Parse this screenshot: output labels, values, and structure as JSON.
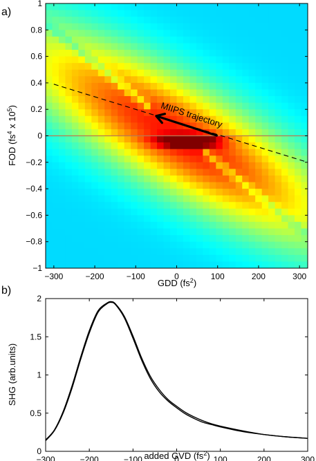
{
  "panel_labels": {
    "a": "a)",
    "b": "b)"
  },
  "chart_data": [
    {
      "type": "heatmap",
      "panel": "a)",
      "xlabel": "GDD (fs",
      "xlabel_sup": "2",
      "xlabel_end": ")",
      "ylabel": "FOD (fs",
      "ylabel_sup1": "4",
      "ylabel_mid": " x 10",
      "ylabel_sup2": "5",
      "ylabel_end": ")",
      "xlim": [
        -320,
        320
      ],
      "ylim": [
        -1,
        1
      ],
      "xticks": [
        -300,
        -200,
        -100,
        0,
        100,
        200,
        300
      ],
      "yticks": [
        -1,
        -0.8,
        -0.6,
        -0.4,
        -0.2,
        0,
        0.2,
        0.4,
        0.6,
        0.8,
        1
      ],
      "xtick_labels": [
        "−300",
        "−200",
        "−100",
        "0",
        "100",
        "200",
        "300"
      ],
      "ytick_labels": [
        "−1",
        "−0.8",
        "−0.6",
        "−0.4",
        "−0.2",
        "0",
        "0.2",
        "0.4",
        "0.6",
        "0.8",
        "1"
      ],
      "colormap": "jet",
      "peak": {
        "x": 30,
        "y": -0.04
      },
      "annotation": "MIIPS trajectory",
      "arrow": {
        "from": [
          100,
          0
        ],
        "to": [
          -50,
          0.15
        ]
      },
      "dashed_line": {
        "from": [
          -300,
          0.39
        ],
        "to": [
          320,
          -0.2
        ]
      },
      "horizontal_line": {
        "y": 0,
        "color": "#b87a52"
      }
    },
    {
      "type": "line",
      "panel": "b)",
      "xlabel": "added GVD (fs",
      "xlabel_sup": "2",
      "xlabel_end": ")",
      "ylabel": "SHG (arb.units)",
      "xlim": [
        -300,
        300
      ],
      "ylim": [
        0,
        2
      ],
      "xticks": [
        -300,
        -200,
        -100,
        0,
        100,
        200,
        300
      ],
      "yticks": [
        0,
        0.5,
        1,
        1.5,
        2
      ],
      "xtick_labels": [
        "−300",
        "−200",
        "−100",
        "0",
        "100",
        "200",
        "300"
      ],
      "ytick_labels": [
        "0",
        "0.5",
        "1",
        "1.5",
        "2"
      ],
      "series": [
        {
          "x": [
            -300,
            -280,
            -260,
            -240,
            -220,
            -200,
            -180,
            -160,
            -150,
            -140,
            -120,
            -100,
            -80,
            -60,
            -40,
            -20,
            0,
            20,
            40,
            60,
            80,
            100,
            150,
            200,
            250,
            300
          ],
          "y": [
            0.14,
            0.27,
            0.5,
            0.82,
            1.2,
            1.55,
            1.82,
            1.93,
            1.95,
            1.92,
            1.75,
            1.48,
            1.19,
            0.95,
            0.78,
            0.66,
            0.57,
            0.49,
            0.43,
            0.38,
            0.35,
            0.32,
            0.26,
            0.22,
            0.19,
            0.17
          ]
        },
        {
          "x": [
            -300,
            -280,
            -260,
            -240,
            -220,
            -200,
            -180,
            -160,
            -150,
            -140,
            -120,
            -100,
            -80,
            -60,
            -40,
            -20,
            0,
            20,
            40,
            60,
            80,
            100,
            150,
            200,
            250,
            300
          ],
          "y": [
            0.15,
            0.28,
            0.52,
            0.85,
            1.23,
            1.58,
            1.84,
            1.94,
            1.96,
            1.93,
            1.77,
            1.51,
            1.22,
            0.98,
            0.81,
            0.68,
            0.59,
            0.51,
            0.45,
            0.4,
            0.36,
            0.33,
            0.27,
            0.22,
            0.19,
            0.17
          ]
        }
      ]
    }
  ]
}
